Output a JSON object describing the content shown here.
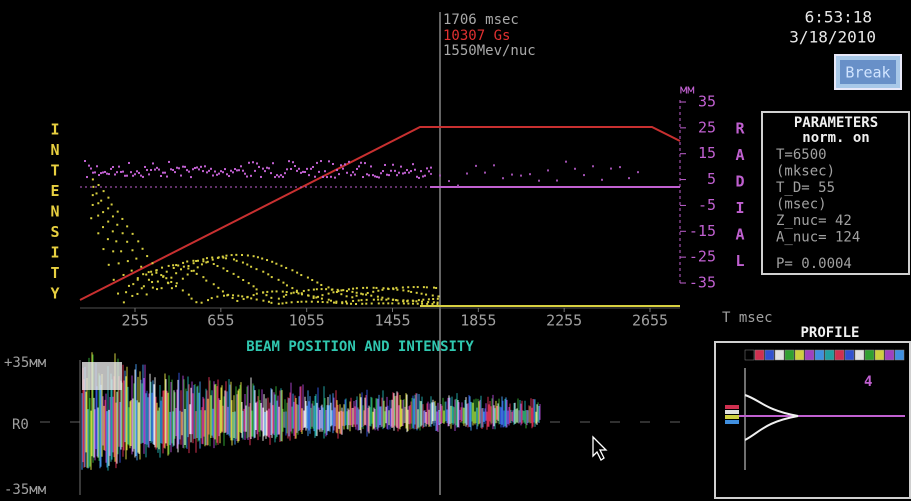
{
  "header": {
    "time_ms": "1706 msec",
    "field": "10307 Gs",
    "energy": "1550Mev/nuc",
    "clock": "6:53:18",
    "date": "3/18/2010",
    "button": "Break"
  },
  "plot": {
    "left_label": [
      "I",
      "N",
      "T",
      "E",
      "N",
      "S",
      "I",
      "T",
      "Y"
    ],
    "right_label": [
      "R",
      "A",
      "D",
      "I",
      "A",
      "L"
    ],
    "y_unit": "мм",
    "yticks": [
      35,
      25,
      15,
      5,
      -5,
      -15,
      -25,
      -35
    ],
    "xticks": [
      255,
      655,
      1055,
      1455,
      1855,
      2255,
      2655
    ],
    "x_unit": "T msec"
  },
  "parameters": {
    "title": "PARAMETERS",
    "mode": "norm. on",
    "lines": [
      "T=6500",
      "(mksec)",
      "T_D= 55",
      "(msec)",
      "Z_nuc= 42",
      "A_nuc= 124"
    ],
    "p": "P=  0.0004"
  },
  "beam": {
    "title": "BEAM POSITION AND INTENSITY",
    "top": "+35мм",
    "center": "R0",
    "bottom": "-35мм"
  },
  "profile": {
    "title": "PROFILE",
    "index": "4"
  }
}
